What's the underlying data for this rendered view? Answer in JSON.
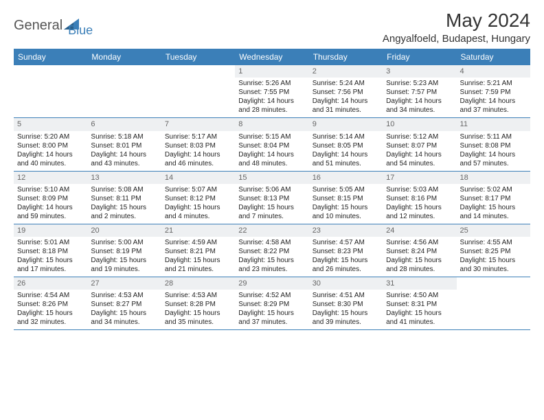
{
  "logo": {
    "general": "General",
    "blue": "Blue"
  },
  "title": "May 2024",
  "location": "Angyalfoeld, Budapest, Hungary",
  "colors": {
    "header_bg": "#3b7fb8",
    "header_text": "#ffffff",
    "daynum_bg": "#eef0f2",
    "daynum_text": "#666666",
    "border": "#3b7fb8",
    "body_text": "#222222"
  },
  "day_names": [
    "Sunday",
    "Monday",
    "Tuesday",
    "Wednesday",
    "Thursday",
    "Friday",
    "Saturday"
  ],
  "weeks": [
    [
      null,
      null,
      null,
      {
        "n": "1",
        "sr": "5:26 AM",
        "ss": "7:55 PM",
        "dl": "14 hours and 28 minutes."
      },
      {
        "n": "2",
        "sr": "5:24 AM",
        "ss": "7:56 PM",
        "dl": "14 hours and 31 minutes."
      },
      {
        "n": "3",
        "sr": "5:23 AM",
        "ss": "7:57 PM",
        "dl": "14 hours and 34 minutes."
      },
      {
        "n": "4",
        "sr": "5:21 AM",
        "ss": "7:59 PM",
        "dl": "14 hours and 37 minutes."
      }
    ],
    [
      {
        "n": "5",
        "sr": "5:20 AM",
        "ss": "8:00 PM",
        "dl": "14 hours and 40 minutes."
      },
      {
        "n": "6",
        "sr": "5:18 AM",
        "ss": "8:01 PM",
        "dl": "14 hours and 43 minutes."
      },
      {
        "n": "7",
        "sr": "5:17 AM",
        "ss": "8:03 PM",
        "dl": "14 hours and 46 minutes."
      },
      {
        "n": "8",
        "sr": "5:15 AM",
        "ss": "8:04 PM",
        "dl": "14 hours and 48 minutes."
      },
      {
        "n": "9",
        "sr": "5:14 AM",
        "ss": "8:05 PM",
        "dl": "14 hours and 51 minutes."
      },
      {
        "n": "10",
        "sr": "5:12 AM",
        "ss": "8:07 PM",
        "dl": "14 hours and 54 minutes."
      },
      {
        "n": "11",
        "sr": "5:11 AM",
        "ss": "8:08 PM",
        "dl": "14 hours and 57 minutes."
      }
    ],
    [
      {
        "n": "12",
        "sr": "5:10 AM",
        "ss": "8:09 PM",
        "dl": "14 hours and 59 minutes."
      },
      {
        "n": "13",
        "sr": "5:08 AM",
        "ss": "8:11 PM",
        "dl": "15 hours and 2 minutes."
      },
      {
        "n": "14",
        "sr": "5:07 AM",
        "ss": "8:12 PM",
        "dl": "15 hours and 4 minutes."
      },
      {
        "n": "15",
        "sr": "5:06 AM",
        "ss": "8:13 PM",
        "dl": "15 hours and 7 minutes."
      },
      {
        "n": "16",
        "sr": "5:05 AM",
        "ss": "8:15 PM",
        "dl": "15 hours and 10 minutes."
      },
      {
        "n": "17",
        "sr": "5:03 AM",
        "ss": "8:16 PM",
        "dl": "15 hours and 12 minutes."
      },
      {
        "n": "18",
        "sr": "5:02 AM",
        "ss": "8:17 PM",
        "dl": "15 hours and 14 minutes."
      }
    ],
    [
      {
        "n": "19",
        "sr": "5:01 AM",
        "ss": "8:18 PM",
        "dl": "15 hours and 17 minutes."
      },
      {
        "n": "20",
        "sr": "5:00 AM",
        "ss": "8:19 PM",
        "dl": "15 hours and 19 minutes."
      },
      {
        "n": "21",
        "sr": "4:59 AM",
        "ss": "8:21 PM",
        "dl": "15 hours and 21 minutes."
      },
      {
        "n": "22",
        "sr": "4:58 AM",
        "ss": "8:22 PM",
        "dl": "15 hours and 23 minutes."
      },
      {
        "n": "23",
        "sr": "4:57 AM",
        "ss": "8:23 PM",
        "dl": "15 hours and 26 minutes."
      },
      {
        "n": "24",
        "sr": "4:56 AM",
        "ss": "8:24 PM",
        "dl": "15 hours and 28 minutes."
      },
      {
        "n": "25",
        "sr": "4:55 AM",
        "ss": "8:25 PM",
        "dl": "15 hours and 30 minutes."
      }
    ],
    [
      {
        "n": "26",
        "sr": "4:54 AM",
        "ss": "8:26 PM",
        "dl": "15 hours and 32 minutes."
      },
      {
        "n": "27",
        "sr": "4:53 AM",
        "ss": "8:27 PM",
        "dl": "15 hours and 34 minutes."
      },
      {
        "n": "28",
        "sr": "4:53 AM",
        "ss": "8:28 PM",
        "dl": "15 hours and 35 minutes."
      },
      {
        "n": "29",
        "sr": "4:52 AM",
        "ss": "8:29 PM",
        "dl": "15 hours and 37 minutes."
      },
      {
        "n": "30",
        "sr": "4:51 AM",
        "ss": "8:30 PM",
        "dl": "15 hours and 39 minutes."
      },
      {
        "n": "31",
        "sr": "4:50 AM",
        "ss": "8:31 PM",
        "dl": "15 hours and 41 minutes."
      },
      null
    ]
  ],
  "labels": {
    "sunrise": "Sunrise: ",
    "sunset": "Sunset: ",
    "daylight": "Daylight: "
  }
}
